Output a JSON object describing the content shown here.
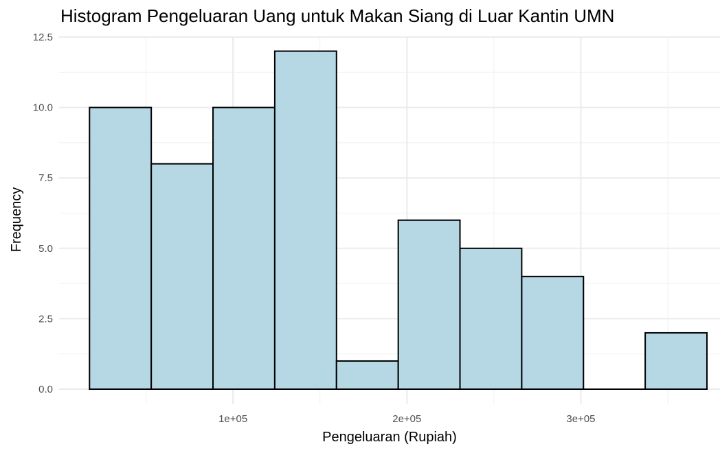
{
  "chart_data": {
    "type": "bar",
    "title": "Histogram Pengeluaran Uang untuk Makan Siang di Luar Kantin UMN",
    "xlabel": "Pengeluaran (Rupiah)",
    "ylabel": "Frequency",
    "bins": [
      {
        "start": 17500,
        "end": 53000,
        "count": 10
      },
      {
        "start": 53000,
        "end": 88500,
        "count": 8
      },
      {
        "start": 88500,
        "end": 124000,
        "count": 10
      },
      {
        "start": 124000,
        "end": 159500,
        "count": 12
      },
      {
        "start": 159500,
        "end": 195000,
        "count": 1
      },
      {
        "start": 195000,
        "end": 230500,
        "count": 6
      },
      {
        "start": 230500,
        "end": 266000,
        "count": 5
      },
      {
        "start": 266000,
        "end": 301500,
        "count": 4
      },
      {
        "start": 301500,
        "end": 337000,
        "count": 0
      },
      {
        "start": 337000,
        "end": 372500,
        "count": 2
      }
    ],
    "x_ticks": [
      {
        "value": 100000,
        "label": "1e+05"
      },
      {
        "value": 200000,
        "label": "2e+05"
      },
      {
        "value": 300000,
        "label": "3e+05"
      }
    ],
    "x_minor_ticks": [
      50000,
      150000,
      250000,
      350000
    ],
    "y_ticks": [
      {
        "value": 0,
        "label": "0.0"
      },
      {
        "value": 2.5,
        "label": "2.5"
      },
      {
        "value": 5,
        "label": "5.0"
      },
      {
        "value": 7.5,
        "label": "7.5"
      },
      {
        "value": 10,
        "label": "10.0"
      },
      {
        "value": 12.5,
        "label": "12.5"
      }
    ],
    "xlim": [
      0,
      380000
    ],
    "ylim": [
      0,
      12.5
    ],
    "grid": true,
    "colors": {
      "bar_fill": "#b5d8e4",
      "bar_stroke": "#000000",
      "grid_major": "#ebebeb",
      "grid_minor": "#f3f3f3"
    }
  }
}
